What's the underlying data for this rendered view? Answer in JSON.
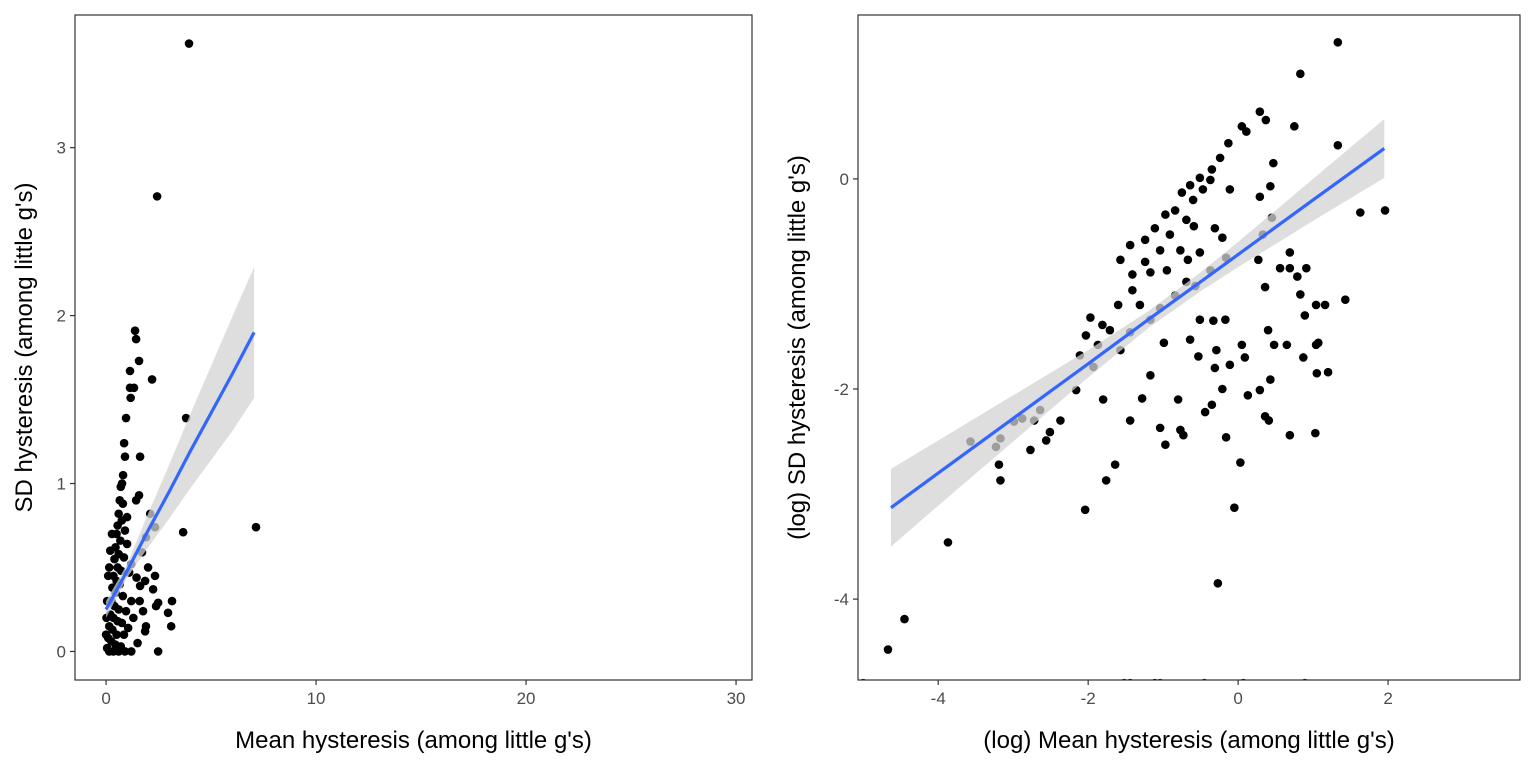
{
  "chart_data": [
    {
      "type": "scatter",
      "title": "",
      "xlabel": "Mean hysteresis (among little g's)",
      "ylabel": "SD hysteresis (among little g's)",
      "xlim": [
        -1.48,
        30.76
      ],
      "ylim": [
        -0.17,
        3.79
      ],
      "xticks": [
        0,
        10,
        20,
        30
      ],
      "yticks": [
        0,
        1,
        2,
        3
      ],
      "grid": false,
      "point_color": "#000000",
      "fit_color": "#3366FF",
      "ribbon_color": "#D3D3D3",
      "points": [
        [
          3.95,
          3.62
        ],
        [
          2.43,
          2.71
        ],
        [
          7.14,
          0.74
        ],
        [
          3.81,
          1.39
        ],
        [
          3.67,
          0.71
        ],
        [
          1.38,
          1.91
        ],
        [
          1.43,
          1.86
        ],
        [
          1.57,
          1.73
        ],
        [
          1.14,
          1.67
        ],
        [
          2.19,
          1.62
        ],
        [
          1.14,
          1.57
        ],
        [
          1.33,
          1.57
        ],
        [
          1.17,
          1.51
        ],
        [
          0.95,
          1.39
        ],
        [
          0.86,
          1.24
        ],
        [
          0.9,
          1.16
        ],
        [
          1.62,
          1.16
        ],
        [
          0.81,
          1.05
        ],
        [
          0.76,
          1.0
        ],
        [
          1.57,
          0.93
        ],
        [
          1.43,
          0.9
        ],
        [
          2.1,
          0.82
        ],
        [
          2.33,
          0.74
        ],
        [
          1.9,
          0.68
        ],
        [
          1.71,
          0.59
        ],
        [
          2.0,
          0.5
        ],
        [
          2.33,
          0.45
        ],
        [
          1.86,
          0.42
        ],
        [
          2.24,
          0.37
        ],
        [
          1.62,
          0.39
        ],
        [
          2.48,
          0.29
        ],
        [
          3.14,
          0.3
        ],
        [
          2.38,
          0.27
        ],
        [
          2.95,
          0.23
        ],
        [
          3.1,
          0.15
        ],
        [
          1.76,
          0.24
        ],
        [
          1.86,
          0.12
        ],
        [
          2.48,
          0.0
        ],
        [
          1.9,
          0.15
        ],
        [
          0.7,
          0.98
        ],
        [
          0.65,
          0.9
        ],
        [
          0.8,
          0.88
        ],
        [
          0.6,
          0.82
        ],
        [
          0.75,
          0.78
        ],
        [
          0.55,
          0.75
        ],
        [
          0.9,
          0.72
        ],
        [
          0.5,
          0.7
        ],
        [
          0.68,
          0.66
        ],
        [
          1.0,
          0.64
        ],
        [
          0.45,
          0.62
        ],
        [
          0.6,
          0.58
        ],
        [
          0.85,
          0.56
        ],
        [
          0.4,
          0.55
        ],
        [
          0.55,
          0.5
        ],
        [
          0.72,
          0.48
        ],
        [
          1.1,
          0.47
        ],
        [
          0.35,
          0.45
        ],
        [
          0.5,
          0.42
        ],
        [
          0.65,
          0.4
        ],
        [
          0.3,
          0.38
        ],
        [
          0.45,
          0.35
        ],
        [
          0.8,
          0.33
        ],
        [
          1.2,
          0.3
        ],
        [
          0.25,
          0.3
        ],
        [
          0.4,
          0.27
        ],
        [
          0.6,
          0.25
        ],
        [
          0.95,
          0.24
        ],
        [
          0.2,
          0.22
        ],
        [
          0.35,
          0.2
        ],
        [
          0.55,
          0.18
        ],
        [
          0.75,
          0.17
        ],
        [
          1.3,
          0.2
        ],
        [
          0.15,
          0.15
        ],
        [
          0.3,
          0.13
        ],
        [
          0.5,
          0.1
        ],
        [
          0.85,
          0.1
        ],
        [
          1.05,
          0.14
        ],
        [
          0.1,
          0.08
        ],
        [
          0.25,
          0.06
        ],
        [
          0.45,
          0.04
        ],
        [
          0.7,
          0.03
        ],
        [
          0.05,
          0.02
        ],
        [
          0.15,
          0.0
        ],
        [
          0.35,
          0.0
        ],
        [
          0.6,
          0.0
        ],
        [
          0.9,
          0.0
        ],
        [
          1.2,
          0.0
        ],
        [
          1.5,
          0.05
        ],
        [
          0.05,
          0.3
        ],
        [
          0.1,
          0.45
        ],
        [
          0.2,
          0.6
        ],
        [
          0.15,
          0.5
        ],
        [
          0.28,
          0.7
        ],
        [
          0.0,
          0.1
        ],
        [
          0.02,
          0.2
        ],
        [
          1.6,
          0.3
        ],
        [
          1.45,
          0.44
        ],
        [
          1.2,
          0.52
        ],
        [
          1.0,
          0.8
        ]
      ],
      "fit": {
        "x": [
          0,
          1,
          2,
          3,
          4,
          5,
          6,
          7.05
        ],
        "y": [
          0.25,
          0.48,
          0.72,
          0.95,
          1.19,
          1.42,
          1.65,
          1.9
        ],
        "lower": [
          0.2,
          0.44,
          0.62,
          0.79,
          0.97,
          1.14,
          1.31,
          1.51
        ],
        "upper": [
          0.3,
          0.52,
          0.82,
          1.11,
          1.41,
          1.7,
          1.99,
          2.29
        ]
      }
    },
    {
      "type": "scatter",
      "title": "",
      "xlabel": "(log) Mean hysteresis (among little g's)",
      "ylabel": "(log) SD hysteresis (among little g's)",
      "xlim": [
        -5.07,
        3.76
      ],
      "ylim": [
        -4.77,
        1.56
      ],
      "xticks": [
        -4,
        -2,
        0,
        2
      ],
      "yticks": [
        -4,
        -2,
        0
      ],
      "grid": false,
      "point_color": "#000000",
      "fit_color": "#3366FF",
      "ribbon_color": "#D3D3D3",
      "points": [
        [
          1.33,
          1.3
        ],
        [
          0.83,
          1.0
        ],
        [
          0.29,
          0.64
        ],
        [
          0.37,
          0.56
        ],
        [
          0.05,
          0.5
        ],
        [
          0.11,
          0.45
        ],
        [
          0.75,
          0.5
        ],
        [
          -0.13,
          0.34
        ],
        [
          -0.24,
          0.2
        ],
        [
          1.33,
          0.32
        ],
        [
          0.47,
          0.15
        ],
        [
          -0.51,
          0.01
        ],
        [
          -0.35,
          0.09
        ],
        [
          -0.64,
          -0.06
        ],
        [
          -0.47,
          -0.1
        ],
        [
          -0.75,
          -0.13
        ],
        [
          -0.37,
          -0.01
        ],
        [
          -0.11,
          -0.1
        ],
        [
          0.43,
          -0.07
        ],
        [
          0.29,
          -0.17
        ],
        [
          0.45,
          -0.37
        ],
        [
          1.63,
          -0.32
        ],
        [
          1.96,
          -0.3
        ],
        [
          -0.6,
          -0.2
        ],
        [
          -0.84,
          -0.3
        ],
        [
          -0.97,
          -0.34
        ],
        [
          -0.69,
          -0.39
        ],
        [
          -1.11,
          -0.47
        ],
        [
          -0.91,
          -0.53
        ],
        [
          -0.59,
          -0.45
        ],
        [
          -0.31,
          -0.47
        ],
        [
          -0.21,
          -0.56
        ],
        [
          -1.24,
          -0.58
        ],
        [
          -1.04,
          -0.68
        ],
        [
          -1.44,
          -0.63
        ],
        [
          -1.24,
          -0.79
        ],
        [
          -0.77,
          -0.68
        ],
        [
          -1.17,
          -0.89
        ],
        [
          -1.57,
          -0.77
        ],
        [
          -1.41,
          -0.91
        ],
        [
          -0.95,
          -0.87
        ],
        [
          -0.67,
          -0.77
        ],
        [
          -0.51,
          -0.7
        ],
        [
          -0.37,
          -0.87
        ],
        [
          -0.16,
          -0.75
        ],
        [
          -0.69,
          -0.98
        ],
        [
          -0.57,
          -1.02
        ],
        [
          -0.84,
          -1.11
        ],
        [
          -1.41,
          -1.06
        ],
        [
          -1.6,
          -1.2
        ],
        [
          -1.31,
          -1.2
        ],
        [
          -1.04,
          -1.23
        ],
        [
          -1.81,
          -1.39
        ],
        [
          -1.71,
          -1.44
        ],
        [
          -1.97,
          -1.32
        ],
        [
          -1.44,
          -1.46
        ],
        [
          -1.87,
          -1.58
        ],
        [
          -2.11,
          -1.68
        ],
        [
          -1.93,
          -1.79
        ],
        [
          -2.16,
          -2.01
        ],
        [
          -2.37,
          -2.3
        ],
        [
          -2.51,
          -2.41
        ],
        [
          -2.56,
          -2.49
        ],
        [
          -2.72,
          -2.3
        ],
        [
          -2.88,
          -2.28
        ],
        [
          -3.17,
          -2.47
        ],
        [
          -3.19,
          -2.72
        ],
        [
          -2.77,
          -2.58
        ],
        [
          -3.23,
          -2.55
        ],
        [
          -2.03,
          -1.49
        ],
        [
          -1.57,
          -1.63
        ],
        [
          -1.17,
          -1.87
        ],
        [
          -0.99,
          -1.56
        ],
        [
          -0.53,
          -1.69
        ],
        [
          0.05,
          -1.58
        ],
        [
          0.09,
          -1.7
        ],
        [
          0.48,
          -1.58
        ],
        [
          0.65,
          -1.58
        ],
        [
          1.04,
          -1.58
        ],
        [
          0.87,
          -1.7
        ],
        [
          -0.33,
          -1.35
        ],
        [
          -0.17,
          -1.34
        ],
        [
          -0.11,
          -1.77
        ],
        [
          -0.31,
          -1.8
        ],
        [
          0.36,
          -1.03
        ],
        [
          0.56,
          -0.85
        ],
        [
          0.69,
          -0.85
        ],
        [
          0.79,
          -0.93
        ],
        [
          0.27,
          -0.77
        ],
        [
          0.33,
          -0.53
        ],
        [
          0.69,
          -0.7
        ],
        [
          0.91,
          -0.85
        ],
        [
          1.04,
          -1.2
        ],
        [
          0.89,
          -1.3
        ],
        [
          1.16,
          -1.2
        ],
        [
          1.43,
          -1.15
        ],
        [
          1.07,
          -1.56
        ],
        [
          1.2,
          -1.84
        ],
        [
          1.05,
          -1.85
        ],
        [
          -1.28,
          -2.09
        ],
        [
          -0.8,
          -2.1
        ],
        [
          -0.77,
          -2.39
        ],
        [
          -0.35,
          -2.15
        ],
        [
          -0.16,
          -2.46
        ],
        [
          -0.29,
          -1.63
        ],
        [
          -0.97,
          -2.53
        ],
        [
          -0.73,
          -2.44
        ],
        [
          -0.44,
          -2.22
        ],
        [
          0.36,
          -2.26
        ],
        [
          1.03,
          -2.42
        ],
        [
          0.41,
          -2.3
        ],
        [
          0.69,
          -2.44
        ],
        [
          0.13,
          -2.06
        ],
        [
          0.29,
          -2.01
        ],
        [
          0.43,
          -1.91
        ],
        [
          -0.21,
          -2.0
        ],
        [
          -1.8,
          -2.1
        ],
        [
          -1.44,
          -2.3
        ],
        [
          -1.04,
          -2.37
        ],
        [
          -1.76,
          -2.87
        ],
        [
          -1.64,
          -2.72
        ],
        [
          -2.04,
          -3.15
        ],
        [
          -2.64,
          -2.2
        ],
        [
          -3.57,
          -2.5
        ],
        [
          -3.17,
          -2.87
        ],
        [
          -0.05,
          -3.13
        ],
        [
          -0.27,
          -3.85
        ],
        [
          -3.87,
          -3.46
        ],
        [
          -4.45,
          -4.19
        ],
        [
          -4.67,
          -4.48
        ],
        [
          0.03,
          -2.7
        ],
        [
          0.83,
          -1.1
        ],
        [
          0.4,
          -1.44
        ],
        [
          -0.64,
          -1.53
        ],
        [
          -0.51,
          -1.34
        ],
        [
          -1.17,
          -1.34
        ],
        [
          -2.99,
          -2.31
        ],
        [
          -5.0,
          -4.8
        ],
        [
          -1.52,
          -4.8
        ],
        [
          -1.44,
          -4.8
        ],
        [
          -1.11,
          -4.8
        ],
        [
          -1.04,
          -4.8
        ],
        [
          -0.45,
          -4.8
        ],
        [
          0.07,
          -4.8
        ],
        [
          0.89,
          -4.8
        ]
      ],
      "fit": {
        "x": [
          -4.63,
          -4,
          -3,
          -2,
          -1.2,
          -0.5,
          0,
          1,
          1.95
        ],
        "y": [
          -3.13,
          -2.8,
          -2.28,
          -1.76,
          -1.34,
          -0.98,
          -0.72,
          -0.2,
          0.29
        ],
        "lower": [
          -3.5,
          -3.11,
          -2.5,
          -1.89,
          -1.42,
          -1.07,
          -0.84,
          -0.4,
          0.01
        ],
        "upper": [
          -2.76,
          -2.49,
          -2.06,
          -1.63,
          -1.26,
          -0.89,
          -0.6,
          0.0,
          0.57
        ]
      }
    }
  ]
}
